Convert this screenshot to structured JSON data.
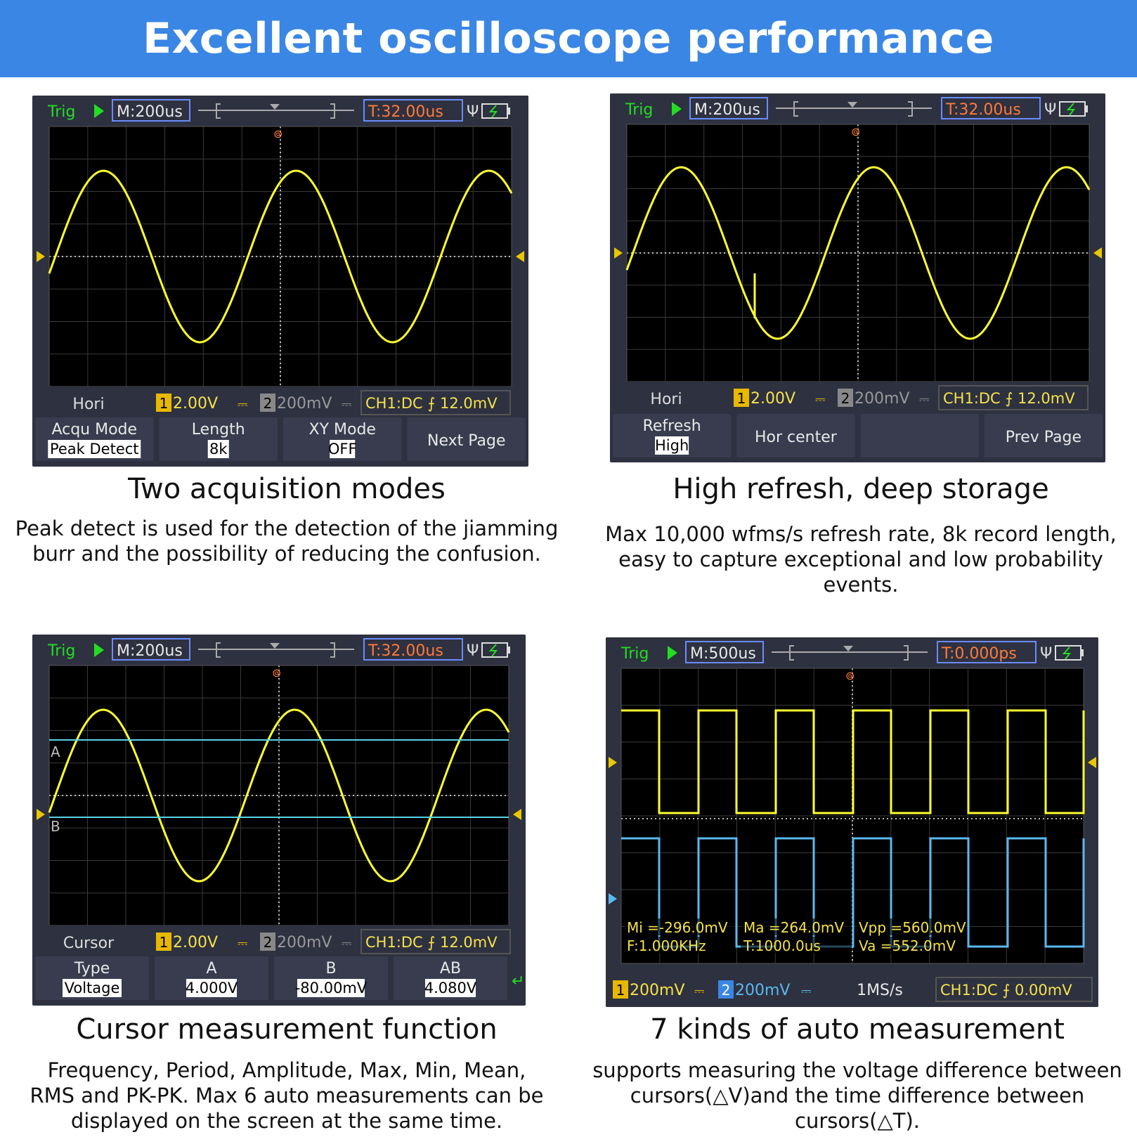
{
  "header": {
    "title": "Excellent oscilloscope performance"
  },
  "colors": {
    "banner": "#3a86e4",
    "screen": "#000000",
    "bezel": "#2e3140",
    "ch1": "#ffff33",
    "ch2": "#5ab9f0",
    "cursor_line": "#5ad2e6",
    "trig_green": "#22dd22",
    "time_orange": "#ff7a3a"
  },
  "panels": [
    {
      "id": "two-acquisition",
      "top": {
        "trig": "Trig",
        "timebase": "M:200us",
        "trig_time": "T:32.00us",
        "usb_icon": "usb-icon",
        "battery_icon": "battery-icon"
      },
      "status": {
        "mode": "Hori",
        "ch1": "2.00V",
        "ch2": "200mV",
        "trigger": "CH1:DC ⨍ 12.0mV",
        "ch1_num": "1",
        "ch2_num": "2",
        "coupling": "⎓"
      },
      "menu": [
        {
          "label": "Acqu Mode",
          "value": "Peak Detect"
        },
        {
          "label": "Length",
          "value": "8k"
        },
        {
          "label": "XY Mode",
          "value": "OFF"
        },
        {
          "label": "Next Page",
          "value": ""
        }
      ],
      "caption": {
        "title": "Two acquisition modes",
        "text": "Peak detect is used for the detection of the jiamming burr and the possibility of reducing the confusion."
      }
    },
    {
      "id": "high-refresh",
      "top": {
        "trig": "Trig",
        "timebase": "M:200us",
        "trig_time": "T:32.00us",
        "usb_icon": "usb-icon",
        "battery_icon": "battery-icon"
      },
      "status": {
        "mode": "Hori",
        "ch1": "2.00V",
        "ch2": "200mV",
        "trigger": "CH1:DC ⨍ 12.0mV",
        "ch1_num": "1",
        "ch2_num": "2",
        "coupling": "⎓"
      },
      "menu": [
        {
          "label": "Refresh",
          "value": "High"
        },
        {
          "label": "Hor center",
          "value": ""
        },
        {
          "label": "",
          "value": ""
        },
        {
          "label": "Prev Page",
          "value": ""
        }
      ],
      "caption": {
        "title": "High refresh, deep storage",
        "text": "Max 10,000 wfms/s refresh rate, 8k record length, easy to capture exceptional and low probability events."
      }
    },
    {
      "id": "cursor",
      "top": {
        "trig": "Trig",
        "timebase": "M:200us",
        "trig_time": "T:32.00us",
        "usb_icon": "usb-icon",
        "battery_icon": "battery-icon"
      },
      "status": {
        "mode": "Cursor",
        "ch1": "2.00V",
        "ch2": "200mV",
        "trigger": "CH1:DC ⨍ 12.0mV",
        "ch1_num": "1",
        "ch2_num": "2",
        "coupling": "⎓"
      },
      "menu": [
        {
          "label": "Type",
          "value": "Voltage"
        },
        {
          "label": "A",
          "value": "4.000V"
        },
        {
          "label": "B",
          "value": "-80.00mV"
        },
        {
          "label": "AB",
          "value": "4.080V"
        }
      ],
      "cursor_labels": {
        "a": "A",
        "b": "B"
      },
      "caption": {
        "title": "Cursor measurement function",
        "text": "Frequency, Period, Amplitude, Max, Min, Mean, RMS and PK-PK. Max 6 auto measurements can be displayed on the screen at the same time."
      }
    },
    {
      "id": "auto-measure",
      "top": {
        "trig": "Trig",
        "timebase": "M:500us",
        "trig_time": "T:0.000ps",
        "usb_icon": "usb-icon",
        "battery_icon": "battery-icon"
      },
      "measurements": [
        [
          "Mi =-296.0mV",
          "Ma =264.0mV",
          "Vpp =560.0mV"
        ],
        [
          "F:1.000KHz",
          "T:1000.0us",
          "Va =552.0mV"
        ]
      ],
      "status": {
        "ch1": "200mV",
        "ch2": "200mV",
        "rate": "1MS/s",
        "trigger": "CH1:DC ⨍ 0.00mV",
        "ch1_num": "1",
        "ch2_num": "2",
        "coupling": "⎓"
      },
      "caption": {
        "title": "7 kinds of auto measurement",
        "text": "supports measuring the voltage difference between cursors(△V)and the time difference between cursors(△T)."
      }
    }
  ]
}
